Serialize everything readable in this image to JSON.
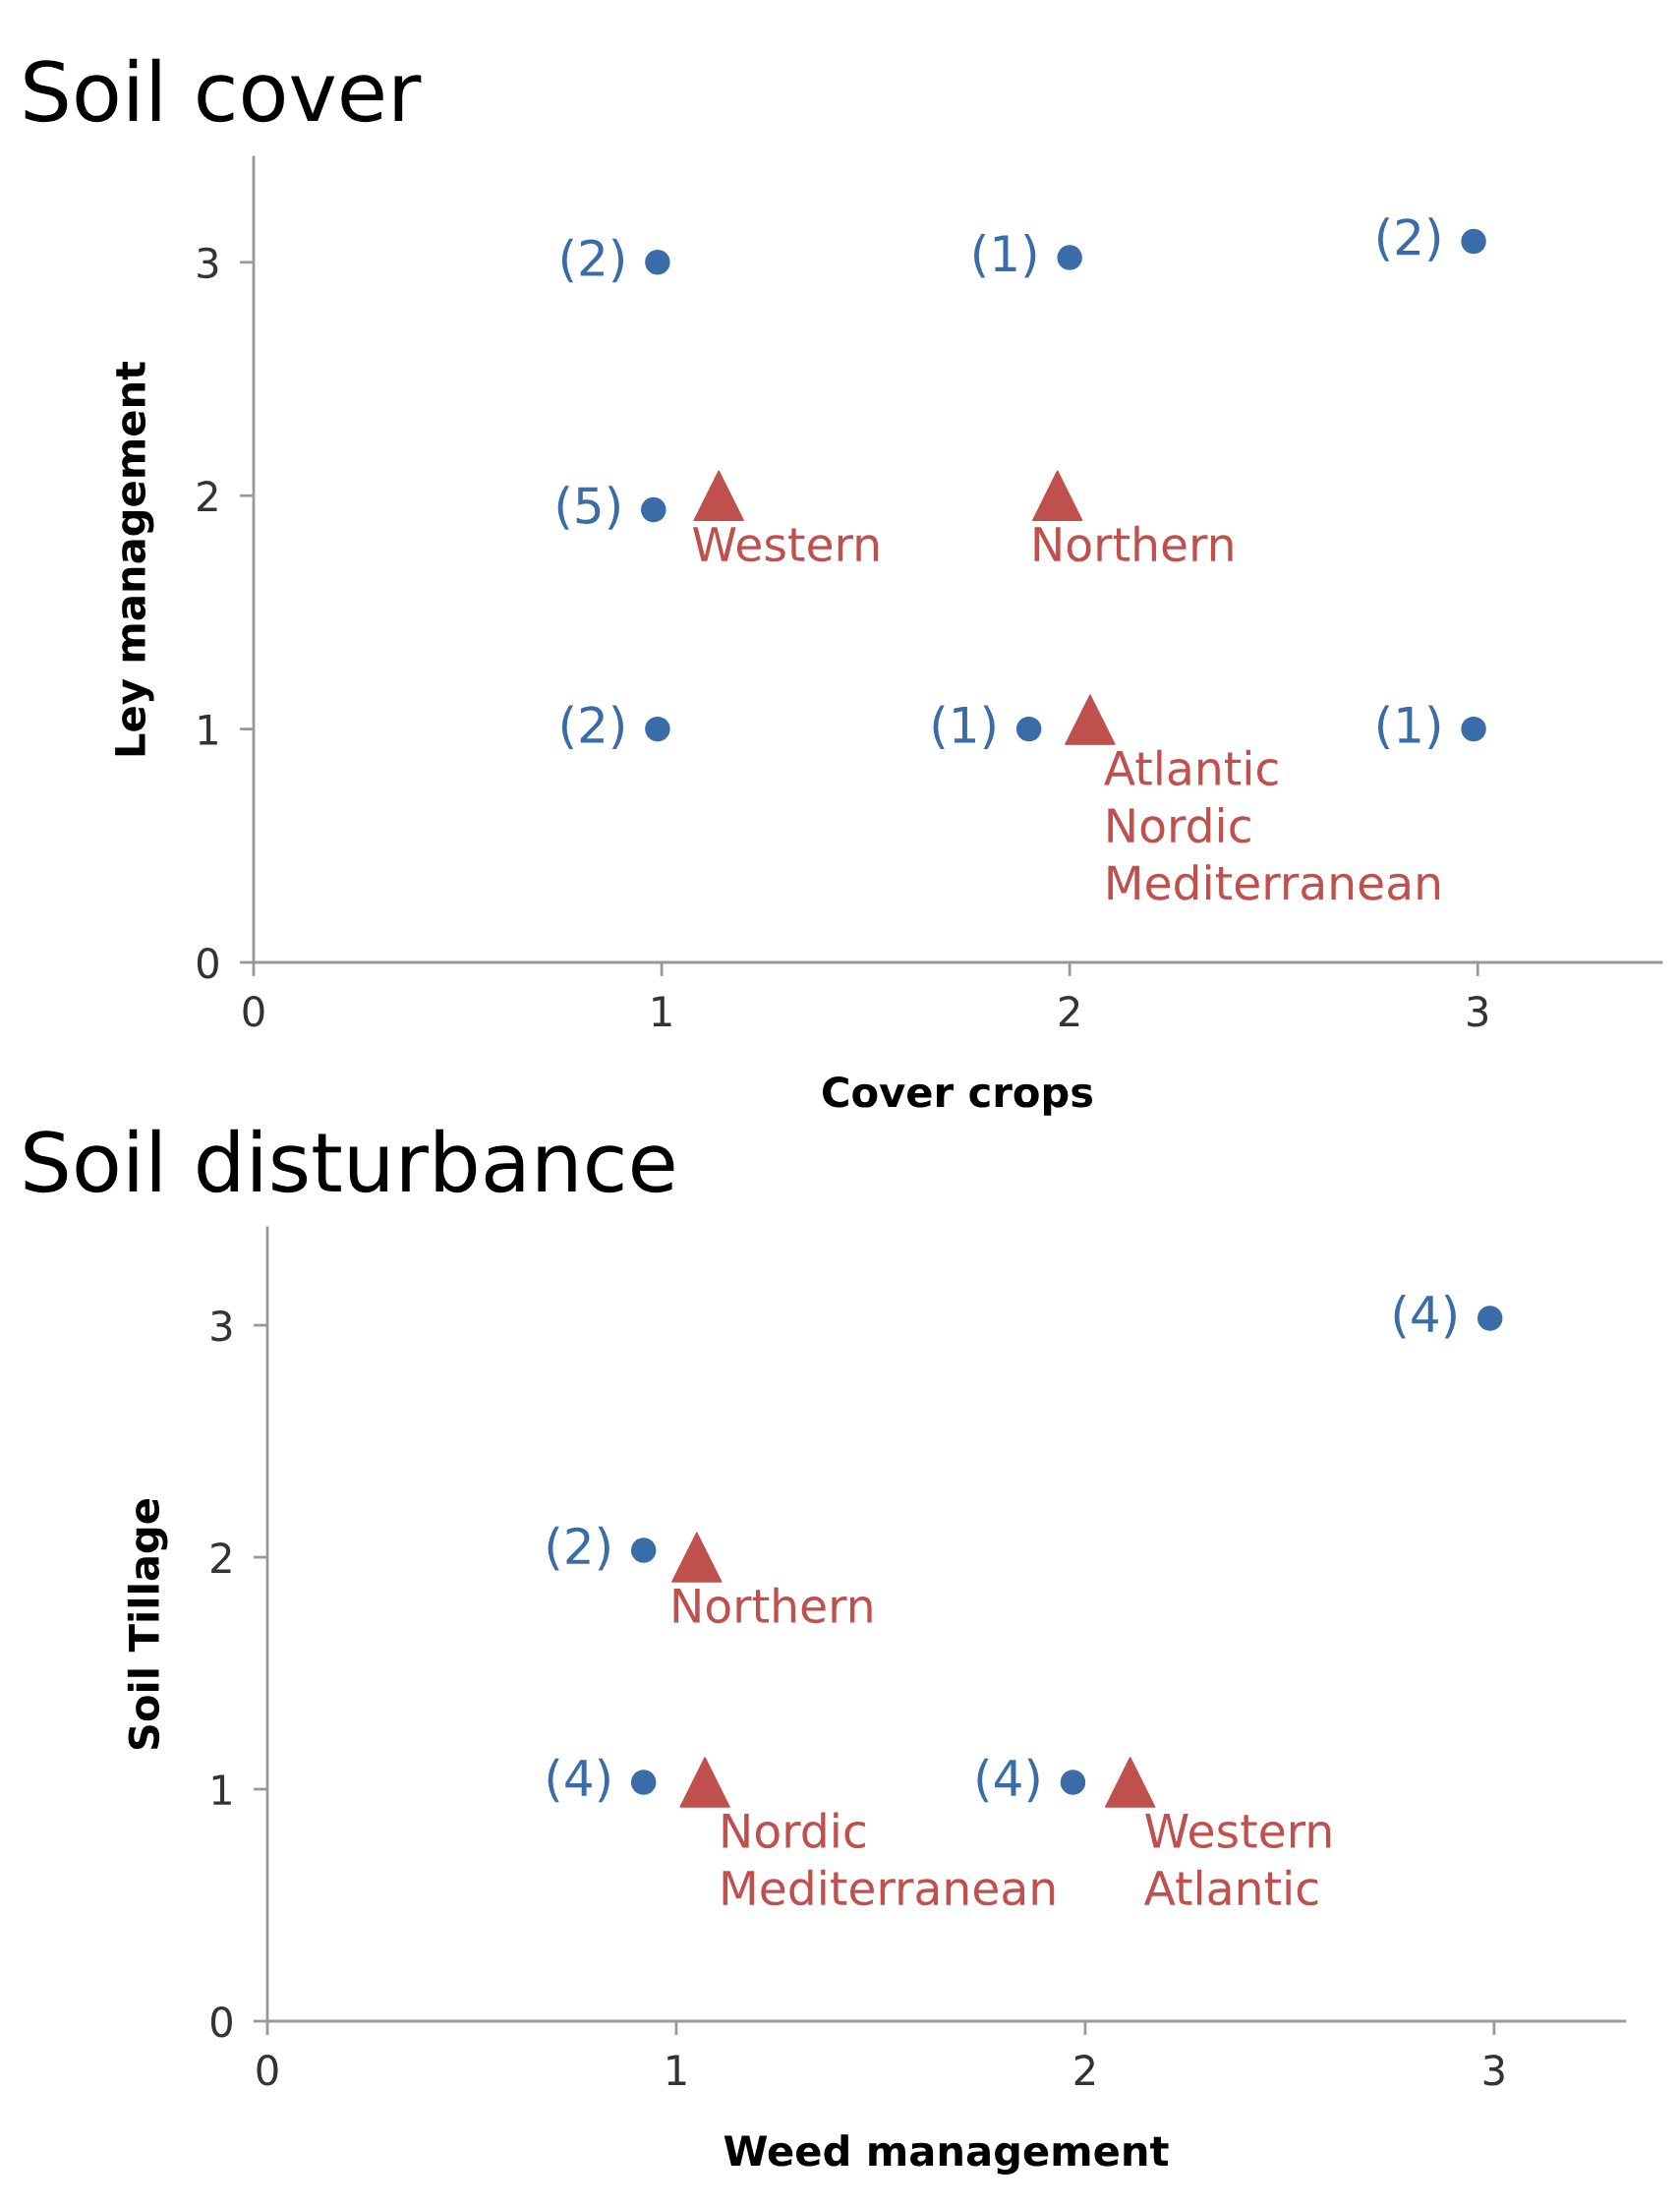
{
  "chart_data": [
    {
      "type": "scatter",
      "title": "Soil cover",
      "xlabel": "Cover crops",
      "ylabel": "Ley management",
      "xlim": [
        0,
        3.45
      ],
      "ylim": [
        0,
        3.45
      ],
      "xticks": [
        0,
        1,
        2,
        3
      ],
      "yticks": [
        0,
        1,
        2,
        3
      ],
      "grid": false,
      "legend": false,
      "series": [
        {
          "color": "#3a6ca8",
          "marker": "circle",
          "x": [
            0.99,
            2.0,
            2.99,
            0.98,
            0.99,
            1.9,
            2.99
          ],
          "values": [
            3.0,
            3.02,
            3.09,
            1.94,
            1.0,
            1.0,
            1.0
          ]
        },
        {
          "color": "#c0504d",
          "marker": "triangle",
          "x": [
            1.14,
            1.97,
            2.05
          ],
          "values": [
            2.0,
            2.0,
            1.04
          ]
        }
      ],
      "annotations": [
        {
          "text": "(2)",
          "x": 0.99,
          "y": 3.0
        },
        {
          "text": "(1)",
          "x": 2.0,
          "y": 3.02
        },
        {
          "text": "(2)",
          "x": 2.99,
          "y": 3.09
        },
        {
          "text": "(5)",
          "x": 0.98,
          "y": 1.94
        },
        {
          "text": "(2)",
          "x": 0.99,
          "y": 1.0
        },
        {
          "text": "(1)",
          "x": 1.9,
          "y": 1.0
        },
        {
          "text": "(1)",
          "x": 2.99,
          "y": 1.0
        },
        {
          "text": "Western",
          "x": 1.14,
          "y": 2.0
        },
        {
          "text": "Northern",
          "x": 1.97,
          "y": 2.0
        },
        {
          "text": "Atlantic\nNordic\nMediterranean",
          "x": 2.05,
          "y": 1.04
        }
      ]
    },
    {
      "type": "scatter",
      "title": "Soil disturbance",
      "xlabel": "Weed management",
      "ylabel": "Soil Tillage",
      "xlim": [
        0,
        3.32
      ],
      "ylim": [
        0,
        3.42
      ],
      "xticks": [
        0,
        1,
        2,
        3
      ],
      "yticks": [
        0,
        1,
        2,
        3
      ],
      "grid": false,
      "legend": false,
      "series": [
        {
          "color": "#3a6ca8",
          "marker": "circle",
          "x": [
            2.99,
            0.92,
            0.92,
            1.97
          ],
          "values": [
            3.03,
            2.03,
            1.03,
            1.03
          ]
        },
        {
          "color": "#c0504d",
          "marker": "triangle",
          "x": [
            1.05,
            1.07,
            2.11
          ],
          "values": [
            2.0,
            1.03,
            1.03
          ]
        }
      ],
      "annotations": [
        {
          "text": "(4)",
          "x": 2.99,
          "y": 3.03
        },
        {
          "text": "(2)",
          "x": 0.92,
          "y": 2.03
        },
        {
          "text": "(4)",
          "x": 0.92,
          "y": 1.03
        },
        {
          "text": "(4)",
          "x": 1.97,
          "y": 1.03
        },
        {
          "text": "Northern",
          "x": 1.05,
          "y": 2.0
        },
        {
          "text": "Nordic\nMediterranean",
          "x": 1.07,
          "y": 1.03
        },
        {
          "text": "Western\nAtlantic",
          "x": 2.11,
          "y": 1.03
        }
      ]
    }
  ]
}
